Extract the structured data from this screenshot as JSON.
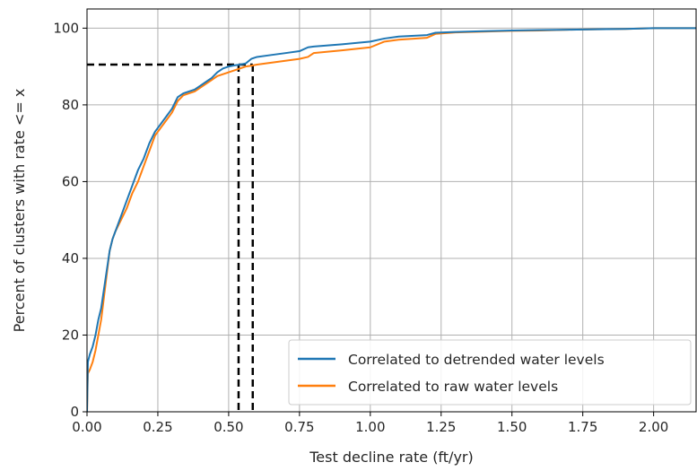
{
  "chart_data": {
    "type": "line",
    "title": "",
    "xlabel": "Test decline rate (ft/yr)",
    "ylabel": "Percent of clusters with rate <= x",
    "xlim": [
      0,
      2.15
    ],
    "ylim": [
      0,
      105
    ],
    "xticks": [
      "0.00",
      "0.25",
      "0.50",
      "0.75",
      "1.00",
      "1.25",
      "1.50",
      "1.75",
      "2.00"
    ],
    "yticks": [
      "0",
      "20",
      "40",
      "60",
      "80",
      "100"
    ],
    "grid": true,
    "legend_position": "lower-right",
    "series": [
      {
        "name": "Correlated to detrended water levels",
        "color": "#1f77b4",
        "x": [
          0,
          0.003,
          0.01,
          0.02,
          0.03,
          0.04,
          0.05,
          0.06,
          0.07,
          0.08,
          0.09,
          0.1,
          0.12,
          0.14,
          0.16,
          0.18,
          0.2,
          0.22,
          0.24,
          0.26,
          0.28,
          0.3,
          0.32,
          0.34,
          0.36,
          0.38,
          0.4,
          0.42,
          0.44,
          0.46,
          0.48,
          0.5,
          0.52,
          0.54,
          0.56,
          0.58,
          0.6,
          0.65,
          0.7,
          0.75,
          0.78,
          0.8,
          0.9,
          1.0,
          1.05,
          1.1,
          1.2,
          1.23,
          1.3,
          1.4,
          1.5,
          1.6,
          1.7,
          1.8,
          1.9,
          2.0,
          2.1,
          2.15
        ],
        "y": [
          0,
          13,
          15,
          17,
          20,
          24,
          27,
          32,
          37,
          42,
          45,
          47,
          51,
          55,
          59,
          63,
          66,
          70,
          73,
          75,
          77,
          79,
          82,
          83,
          83.5,
          84,
          85,
          86,
          87,
          88.5,
          89.5,
          90,
          90.3,
          90.5,
          90.8,
          92,
          92.5,
          93,
          93.5,
          94,
          95,
          95.2,
          95.8,
          96.5,
          97.3,
          97.8,
          98.2,
          98.8,
          99,
          99.2,
          99.4,
          99.5,
          99.6,
          99.7,
          99.8,
          100,
          100,
          100
        ]
      },
      {
        "name": "Correlated to raw water levels",
        "color": "#ff7f0e",
        "x": [
          0,
          0.003,
          0.01,
          0.02,
          0.03,
          0.04,
          0.05,
          0.06,
          0.07,
          0.08,
          0.09,
          0.1,
          0.12,
          0.14,
          0.16,
          0.18,
          0.2,
          0.22,
          0.24,
          0.26,
          0.28,
          0.3,
          0.32,
          0.34,
          0.36,
          0.38,
          0.4,
          0.42,
          0.44,
          0.46,
          0.48,
          0.5,
          0.52,
          0.54,
          0.56,
          0.58,
          0.6,
          0.65,
          0.7,
          0.75,
          0.78,
          0.8,
          0.9,
          1.0,
          1.05,
          1.1,
          1.2,
          1.23,
          1.3,
          1.4,
          1.5,
          1.6,
          1.7,
          1.8,
          1.9,
          2.0,
          2.1,
          2.15
        ],
        "y": [
          0,
          10,
          11,
          13,
          16,
          20,
          24,
          30,
          36,
          42,
          45,
          47,
          50,
          53,
          57,
          60,
          64,
          68,
          72,
          74,
          76,
          78,
          81,
          82.5,
          83,
          83.5,
          84.5,
          85.5,
          86.5,
          87.5,
          88,
          88.5,
          89,
          89.5,
          90,
          90.2,
          90.5,
          91,
          91.5,
          92,
          92.5,
          93.5,
          94.2,
          95,
          96.5,
          97,
          97.5,
          98.5,
          98.9,
          99.1,
          99.3,
          99.4,
          99.6,
          99.7,
          99.8,
          100,
          100,
          100
        ]
      }
    ],
    "annotations": {
      "dashed_horizontal_y": 90.5,
      "dashed_vertical_x": [
        0.535,
        0.585
      ]
    }
  }
}
